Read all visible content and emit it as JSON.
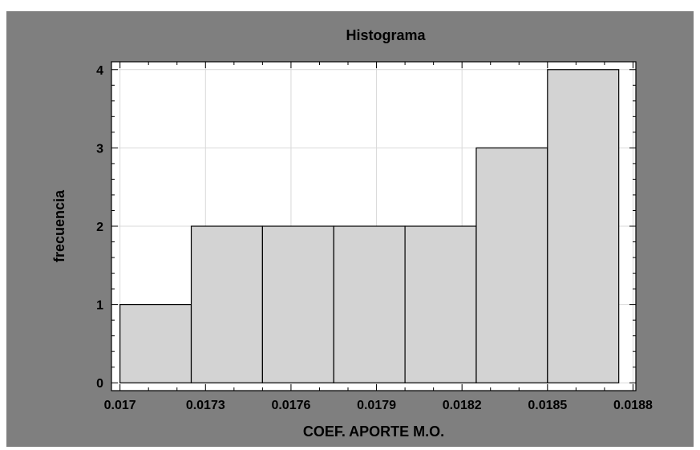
{
  "chart_data": {
    "type": "bar",
    "subtype": "histogram",
    "title": "Histograma",
    "xlabel": "COEF. APORTE M.O.",
    "ylabel": "frecuencia",
    "bins": [
      {
        "start": 0.017,
        "end": 0.01725,
        "count": 1
      },
      {
        "start": 0.01725,
        "end": 0.0175,
        "count": 2
      },
      {
        "start": 0.0175,
        "end": 0.01775,
        "count": 2
      },
      {
        "start": 0.01775,
        "end": 0.018,
        "count": 2
      },
      {
        "start": 0.018,
        "end": 0.01825,
        "count": 2
      },
      {
        "start": 0.01825,
        "end": 0.0185,
        "count": 3
      },
      {
        "start": 0.0185,
        "end": 0.01875,
        "count": 4
      }
    ],
    "xlim": [
      0.01697,
      0.01881
    ],
    "ylim": [
      -0.1,
      4.1
    ],
    "xticks": [
      0.017,
      0.0173,
      0.0176,
      0.0179,
      0.0182,
      0.0185,
      0.0188
    ],
    "xtick_labels": [
      "0.017",
      "0.0173",
      "0.0176",
      "0.0179",
      "0.0182",
      "0.0185",
      "0.0188"
    ],
    "yticks": [
      0,
      1,
      2,
      3,
      4
    ],
    "ytick_labels": [
      "0",
      "1",
      "2",
      "3",
      "4"
    ],
    "grid": true,
    "legend": "none",
    "colors": {
      "frame_background": "#7f7f7f",
      "plot_background": "#ffffff",
      "bar_fill": "#d3d3d3",
      "bar_edge": "#000000",
      "grid": "#d9d9d9"
    }
  }
}
